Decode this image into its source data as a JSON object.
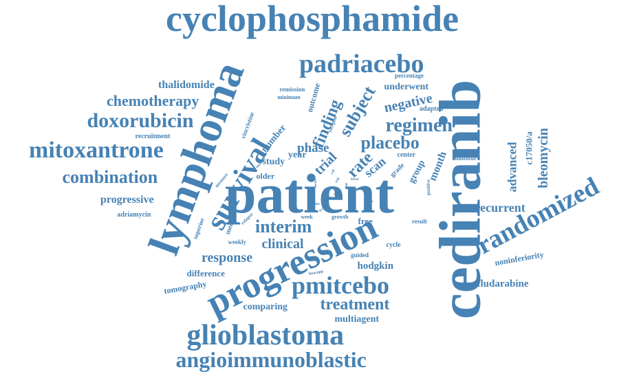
{
  "color": "#4682b4",
  "words": [
    {
      "text": "patient",
      "weight": 100,
      "orientation": "horizontal"
    },
    {
      "text": "cediranib",
      "weight": 92,
      "orientation": "vertical"
    },
    {
      "text": "lymphoma",
      "weight": 82,
      "orientation": "steep-diagonal"
    },
    {
      "text": "progression",
      "weight": 72,
      "orientation": "diagonal"
    },
    {
      "text": "cyclophosphamide",
      "weight": 64,
      "orientation": "horizontal"
    },
    {
      "text": "survival",
      "weight": 58,
      "orientation": "steep-diagonal"
    },
    {
      "text": "randomized",
      "weight": 54,
      "orientation": "diagonal"
    },
    {
      "text": "glioblastoma",
      "weight": 54,
      "orientation": "horizontal"
    },
    {
      "text": "padriacebo",
      "weight": 48,
      "orientation": "horizontal"
    },
    {
      "text": "pmitcebo",
      "weight": 44,
      "orientation": "horizontal"
    },
    {
      "text": "mitoxantrone",
      "weight": 42,
      "orientation": "horizontal"
    },
    {
      "text": "angioimmunoblastic",
      "weight": 40,
      "orientation": "horizontal"
    },
    {
      "text": "doxorubicin",
      "weight": 38,
      "orientation": "horizontal"
    },
    {
      "text": "regimen",
      "weight": 36,
      "orientation": "horizontal"
    },
    {
      "text": "combination",
      "weight": 33,
      "orientation": "horizontal"
    },
    {
      "text": "placebo",
      "weight": 34,
      "orientation": "horizontal"
    },
    {
      "text": "subject",
      "weight": 34,
      "orientation": "diagonal"
    },
    {
      "text": "interim",
      "weight": 32,
      "orientation": "horizontal"
    },
    {
      "text": "finding",
      "weight": 30,
      "orientation": "steep-diagonal"
    },
    {
      "text": "chemotherapy",
      "weight": 28,
      "orientation": "horizontal"
    },
    {
      "text": "rate",
      "weight": 30,
      "orientation": "diagonal"
    },
    {
      "text": "treatment",
      "weight": 28,
      "orientation": "horizontal"
    },
    {
      "text": "negative",
      "weight": 26,
      "orientation": "slight-up"
    },
    {
      "text": "trial",
      "weight": 24,
      "orientation": "diagonal"
    },
    {
      "text": "response",
      "weight": 24,
      "orientation": "horizontal"
    },
    {
      "text": "clinical",
      "weight": 23,
      "orientation": "horizontal"
    },
    {
      "text": "bleomycin",
      "weight": 24,
      "orientation": "vertical"
    },
    {
      "text": "advanced",
      "weight": 22,
      "orientation": "vertical"
    },
    {
      "text": "phase",
      "weight": 22,
      "orientation": "horizontal"
    },
    {
      "text": "scan",
      "weight": 22,
      "orientation": "diagonal"
    },
    {
      "text": "recurrent",
      "weight": 21,
      "orientation": "horizontal"
    },
    {
      "text": "thalidomide",
      "weight": 20,
      "orientation": "horizontal"
    },
    {
      "text": "hodgkin",
      "weight": 18,
      "orientation": "horizontal"
    },
    {
      "text": "progressive",
      "weight": 19,
      "orientation": "horizontal"
    },
    {
      "text": "fludarabine",
      "weight": 19,
      "orientation": "horizontal"
    },
    {
      "text": "month",
      "weight": 19,
      "orientation": "steep-diagonal"
    },
    {
      "text": "group",
      "weight": 18,
      "orientation": "diagonal"
    },
    {
      "text": "underwent",
      "weight": 17,
      "orientation": "horizontal"
    },
    {
      "text": "year",
      "weight": 18,
      "orientation": "horizontal"
    },
    {
      "text": "comparing",
      "weight": 17,
      "orientation": "horizontal"
    },
    {
      "text": "multiagent",
      "weight": 17,
      "orientation": "horizontal"
    },
    {
      "text": "study",
      "weight": 17,
      "orientation": "horizontal"
    },
    {
      "text": "number",
      "weight": 17,
      "orientation": "diagonal"
    },
    {
      "text": "c17050/a",
      "weight": 16,
      "orientation": "vertical"
    },
    {
      "text": "difference",
      "weight": 15,
      "orientation": "horizontal"
    },
    {
      "text": "outcome",
      "weight": 16,
      "orientation": "steep-diagonal"
    },
    {
      "text": "free",
      "weight": 15,
      "orientation": "horizontal"
    },
    {
      "text": "tomography",
      "weight": 14,
      "orientation": "slight-up"
    },
    {
      "text": "noninferiority",
      "weight": 14,
      "orientation": "slight-up"
    },
    {
      "text": "older",
      "weight": 14,
      "orientation": "horizontal"
    },
    {
      "text": "recruitment",
      "weight": 12,
      "orientation": "horizontal"
    },
    {
      "text": "adriamycin",
      "weight": 12,
      "orientation": "horizontal"
    },
    {
      "text": "vincristine",
      "weight": 12,
      "orientation": "steep-diagonal"
    },
    {
      "text": "center",
      "weight": 12,
      "orientation": "horizontal"
    },
    {
      "text": "adapted",
      "weight": 12,
      "orientation": "horizontal"
    },
    {
      "text": "inhibitor",
      "weight": 11,
      "orientation": "horizontal"
    },
    {
      "text": "percentage",
      "weight": 11,
      "orientation": "horizontal"
    },
    {
      "text": "remission",
      "weight": 11,
      "orientation": "horizontal"
    },
    {
      "text": "minimum",
      "weight": 10,
      "orientation": "horizontal"
    },
    {
      "text": "receptor",
      "weight": 9,
      "orientation": "steep-diagonal"
    },
    {
      "text": "grade",
      "weight": 12,
      "orientation": "diagonal"
    },
    {
      "text": "positive",
      "weight": 9,
      "orientation": "vertical"
    },
    {
      "text": "measure",
      "weight": 9,
      "orientation": "diagonal"
    },
    {
      "text": "toxicity",
      "weight": 8,
      "orientation": "diagonal"
    },
    {
      "text": "superior",
      "weight": 11,
      "orientation": "steep-diagonal"
    },
    {
      "text": "median",
      "weight": 12,
      "orientation": "steep-diagonal"
    },
    {
      "text": "weekly",
      "weight": 12,
      "orientation": "horizontal"
    },
    {
      "text": "relapse",
      "weight": 9,
      "orientation": "diagonal"
    },
    {
      "text": "week",
      "weight": 10,
      "orientation": "horizontal"
    },
    {
      "text": "growth",
      "weight": 10,
      "orientation": "horizontal"
    },
    {
      "text": "result",
      "weight": 11,
      "orientation": "horizontal"
    },
    {
      "text": "cycle",
      "weight": 12,
      "orientation": "horizontal"
    },
    {
      "text": "guided",
      "weight": 11,
      "orientation": "horizontal"
    },
    {
      "text": "beacopp",
      "weight": 8,
      "orientation": "slight-up"
    },
    {
      "text": "total",
      "weight": 8,
      "orientation": "horizontal"
    },
    {
      "text": "point",
      "weight": 6,
      "orientation": "horizontal"
    },
    {
      "text": "more",
      "weight": 7,
      "orientation": "diagonal"
    },
    {
      "text": "lower",
      "weight": 7,
      "orientation": "horizontal"
    },
    {
      "text": "factor",
      "weight": 6,
      "orientation": "vertical"
    },
    {
      "text": "risk",
      "weight": 6,
      "orientation": "diagonal"
    },
    {
      "text": "cell",
      "weight": 6,
      "orientation": "diagonal"
    },
    {
      "text": "time",
      "weight": 6,
      "orientation": "vertical"
    },
    {
      "text": "stage",
      "weight": 6,
      "orientation": "diagonal"
    },
    {
      "text": "level",
      "weight": 6,
      "orientation": "diagonal"
    }
  ]
}
